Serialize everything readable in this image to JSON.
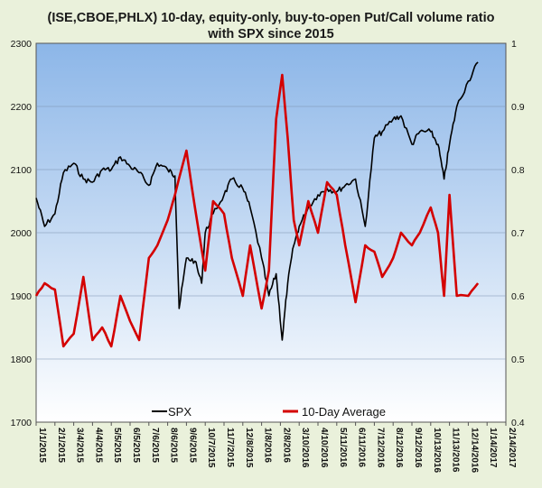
{
  "chart_data": {
    "type": "line",
    "title_line1": "(ISE,CBOE,PHLX) 10-day, equity-only, buy-to-open Put/Call volume ratio",
    "title_line2": "with SPX since 2015",
    "xlabel": "",
    "ylabel": "",
    "ylabel_right": "",
    "left_axis": {
      "ylim": [
        1700,
        2300
      ],
      "ticks": [
        "1700",
        "1800",
        "1900",
        "2000",
        "2100",
        "2200",
        "2300"
      ]
    },
    "right_axis": {
      "ylim": [
        0.4,
        1.0
      ],
      "ticks": [
        "0.4",
        "0.5",
        "0.6",
        "0.7",
        "0.8",
        "0.9",
        "1"
      ]
    },
    "x_ticks": [
      "1/1/2015",
      "2/1/2015",
      "3/4/2015",
      "4/4/2015",
      "5/5/2015",
      "6/5/2015",
      "7/6/2015",
      "8/6/2015",
      "9/6/2015",
      "10/7/2015",
      "11/7/2015",
      "12/8/2015",
      "1/8/2016",
      "2/8/2016",
      "3/10/2016",
      "4/10/2016",
      "5/11/2016",
      "6/11/2016",
      "7/12/2016",
      "8/12/2016",
      "9/12/2016",
      "10/13/2016",
      "11/13/2016",
      "12/14/2016",
      "1/14/2017",
      "2/14/2017"
    ],
    "grid": true,
    "legend_position": "bottom",
    "series": [
      {
        "name": "SPX",
        "axis": "left",
        "color": "#000000",
        "x": [
          "1/1/2015",
          "1/15/2015",
          "2/1/2015",
          "2/15/2015",
          "3/4/2015",
          "3/20/2015",
          "4/4/2015",
          "4/20/2015",
          "5/5/2015",
          "5/20/2015",
          "6/5/2015",
          "6/20/2015",
          "7/6/2015",
          "7/20/2015",
          "8/6/2015",
          "8/18/2015",
          "8/25/2015",
          "9/6/2015",
          "9/20/2015",
          "10/1/2015",
          "10/7/2015",
          "10/20/2015",
          "11/7/2015",
          "11/20/2015",
          "12/8/2015",
          "12/20/2015",
          "1/8/2016",
          "1/20/2016",
          "2/1/2016",
          "2/11/2016",
          "2/20/2016",
          "3/1/2016",
          "3/10/2016",
          "3/25/2016",
          "4/10/2016",
          "4/25/2016",
          "5/11/2016",
          "5/25/2016",
          "6/11/2016",
          "6/27/2016",
          "7/12/2016",
          "7/25/2016",
          "8/12/2016",
          "8/25/2016",
          "9/12/2016",
          "9/25/2016",
          "10/13/2016",
          "10/25/2016",
          "11/4/2016",
          "11/13/2016",
          "11/25/2016",
          "12/14/2016",
          "12/30/2016"
        ],
        "values": [
          2055,
          2010,
          2030,
          2095,
          2110,
          2085,
          2080,
          2100,
          2100,
          2120,
          2105,
          2095,
          2075,
          2110,
          2100,
          2090,
          1880,
          1960,
          1955,
          1920,
          2000,
          2030,
          2060,
          2085,
          2070,
          2040,
          1960,
          1900,
          1935,
          1830,
          1920,
          1980,
          2010,
          2040,
          2060,
          2070,
          2065,
          2075,
          2085,
          2010,
          2150,
          2160,
          2180,
          2185,
          2140,
          2160,
          2160,
          2140,
          2085,
          2140,
          2200,
          2240,
          2270
        ]
      },
      {
        "name": "10-Day Average",
        "axis": "right",
        "color": "#d40000",
        "x": [
          "1/1/2015",
          "1/15/2015",
          "2/1/2015",
          "2/15/2015",
          "3/4/2015",
          "3/20/2015",
          "4/4/2015",
          "4/20/2015",
          "5/5/2015",
          "5/20/2015",
          "6/5/2015",
          "6/20/2015",
          "7/6/2015",
          "7/20/2015",
          "8/6/2015",
          "8/18/2015",
          "9/6/2015",
          "9/20/2015",
          "10/7/2015",
          "10/20/2015",
          "11/7/2015",
          "11/20/2015",
          "12/8/2015",
          "12/20/2015",
          "1/8/2016",
          "1/20/2016",
          "2/1/2016",
          "2/11/2016",
          "2/20/2016",
          "3/1/2016",
          "3/10/2016",
          "3/25/2016",
          "4/10/2016",
          "4/25/2016",
          "5/11/2016",
          "5/25/2016",
          "6/11/2016",
          "6/27/2016",
          "7/12/2016",
          "7/25/2016",
          "8/12/2016",
          "8/25/2016",
          "9/12/2016",
          "9/25/2016",
          "10/13/2016",
          "10/25/2016",
          "11/4/2016",
          "11/13/2016",
          "11/25/2016",
          "12/14/2016",
          "12/30/2016"
        ],
        "values": [
          0.6,
          0.62,
          0.61,
          0.52,
          0.54,
          0.63,
          0.53,
          0.55,
          0.52,
          0.6,
          0.56,
          0.53,
          0.66,
          0.68,
          0.72,
          0.76,
          0.83,
          0.74,
          0.64,
          0.75,
          0.73,
          0.66,
          0.6,
          0.68,
          0.58,
          0.64,
          0.88,
          0.95,
          0.85,
          0.72,
          0.68,
          0.75,
          0.7,
          0.78,
          0.76,
          0.68,
          0.59,
          0.68,
          0.67,
          0.63,
          0.66,
          0.7,
          0.68,
          0.7,
          0.74,
          0.7,
          0.6,
          0.76,
          0.6,
          0.6,
          0.62
        ]
      }
    ]
  }
}
